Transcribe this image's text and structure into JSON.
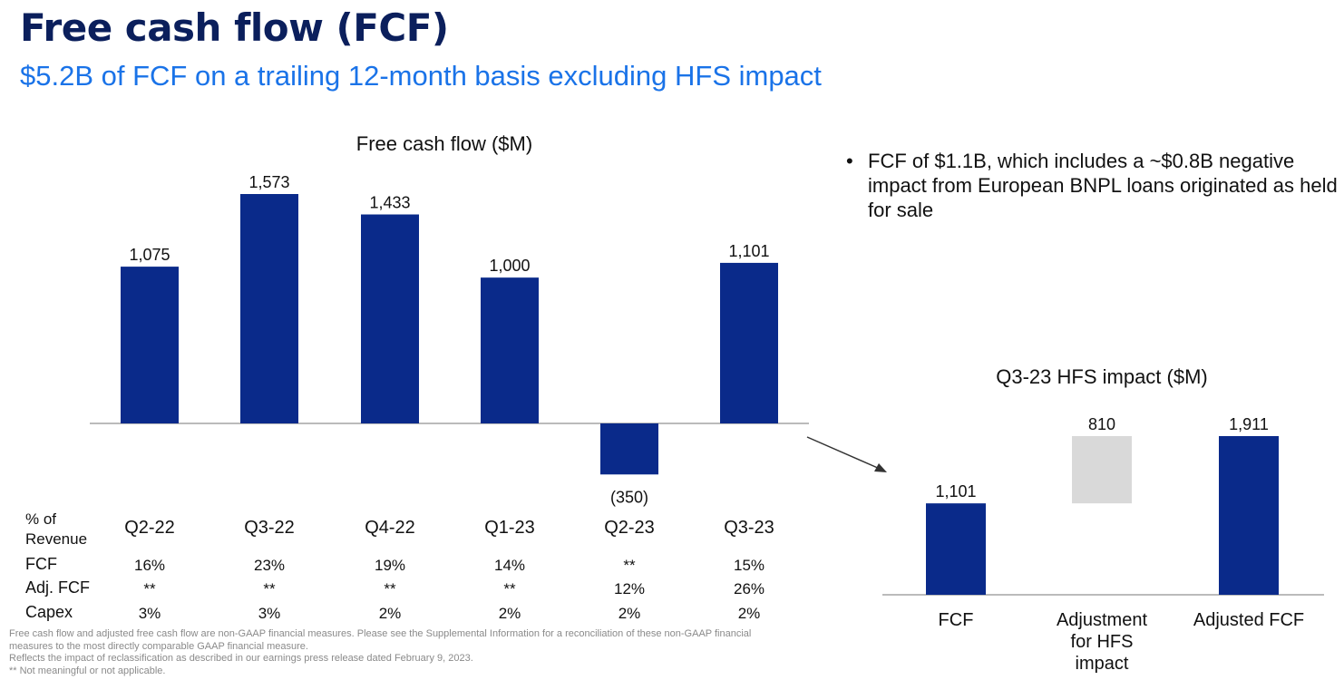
{
  "page": {
    "title": "Free cash flow (FCF)",
    "subtitle": "$5.2B of FCF on a trailing 12-month basis excluding HFS impact",
    "bullet": "FCF of $1.1B, which includes a ~$0.8B negative impact from European BNPL loans originated as held for sale",
    "footnotes": [
      "Free cash flow and adjusted free cash flow are non-GAAP financial measures. Please see the Supplemental Information for a reconciliation of these non-GAAP financial",
      "measures to the most directly comparable GAAP financial measure.",
      "Reflects the impact of reclassification as described in our earnings press release dated February 9, 2023.",
      "** Not meaningful or not applicable."
    ]
  },
  "colors": {
    "bar": "#0a2a8a",
    "adjustment": "#d9d9d9",
    "title": "#0b1f5c",
    "subtitle": "#1a73e8"
  },
  "table": {
    "header_line1": "% of",
    "header_line2": "Revenue",
    "rows": [
      {
        "label": "FCF",
        "values": [
          "16%",
          "23%",
          "19%",
          "14%",
          "**",
          "15%"
        ]
      },
      {
        "label": "Adj. FCF",
        "values": [
          "**",
          "**",
          "**",
          "**",
          "12%",
          "26%"
        ]
      },
      {
        "label": "Capex",
        "values": [
          "3%",
          "3%",
          "2%",
          "2%",
          "2%",
          "2%"
        ]
      }
    ]
  },
  "chart_data": [
    {
      "type": "bar",
      "title": "Free cash flow ($M)",
      "categories": [
        "Q2-22",
        "Q3-22",
        "Q4-22",
        "Q1-23",
        "Q2-23",
        "Q3-23"
      ],
      "values": [
        1075,
        1573,
        1433,
        1000,
        -350,
        1101
      ],
      "value_labels": [
        "1,075",
        "1,573",
        "1,433",
        "1,000",
        "(350)",
        "1,101"
      ],
      "xlabel": "",
      "ylabel": "",
      "grid": false
    },
    {
      "type": "bar",
      "subtype": "waterfall",
      "title": "Q3-23 HFS impact ($M)",
      "categories": [
        "FCF",
        "Adjustment for HFS impact",
        "Adjusted FCF"
      ],
      "values": [
        1101,
        810,
        1911
      ],
      "value_labels": [
        "1,101",
        "810",
        "1,911"
      ],
      "xlabel": "",
      "ylabel": "",
      "grid": false
    }
  ]
}
